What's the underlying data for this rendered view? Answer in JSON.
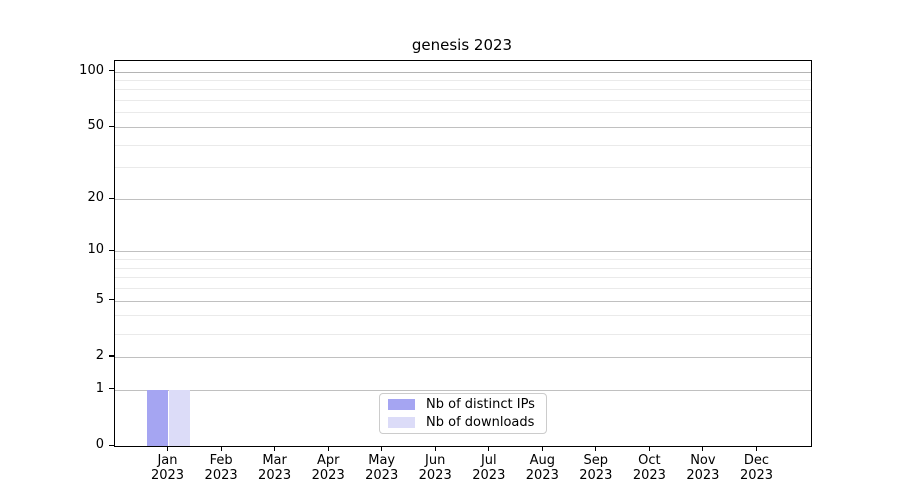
{
  "chart_data": {
    "type": "bar",
    "title": "genesis 2023",
    "categories": [
      "Jan",
      "Feb",
      "Mar",
      "Apr",
      "May",
      "Jun",
      "Jul",
      "Aug",
      "Sep",
      "Oct",
      "Nov",
      "Dec"
    ],
    "category_year": "2023",
    "series": [
      {
        "name": "Nb of distinct IPs",
        "color": "#a5a5f2",
        "values": [
          1,
          0,
          0,
          0,
          0,
          0,
          0,
          0,
          0,
          0,
          0,
          0
        ]
      },
      {
        "name": "Nb of downloads",
        "color": "#dcdcf8",
        "values": [
          1,
          0,
          0,
          0,
          0,
          0,
          0,
          0,
          0,
          0,
          0,
          0
        ]
      }
    ],
    "xlabel": "",
    "ylabel": "",
    "yscale": "log1p",
    "ylim": [
      0,
      114
    ],
    "yticks_major": [
      0,
      1,
      2,
      5,
      10,
      20,
      50,
      100
    ],
    "yticks_minor": [
      3,
      4,
      6,
      7,
      8,
      9,
      30,
      40,
      60,
      70,
      80,
      90
    ],
    "grid": "both",
    "legend_position": "lower center",
    "bar_width_fraction": 0.4
  }
}
